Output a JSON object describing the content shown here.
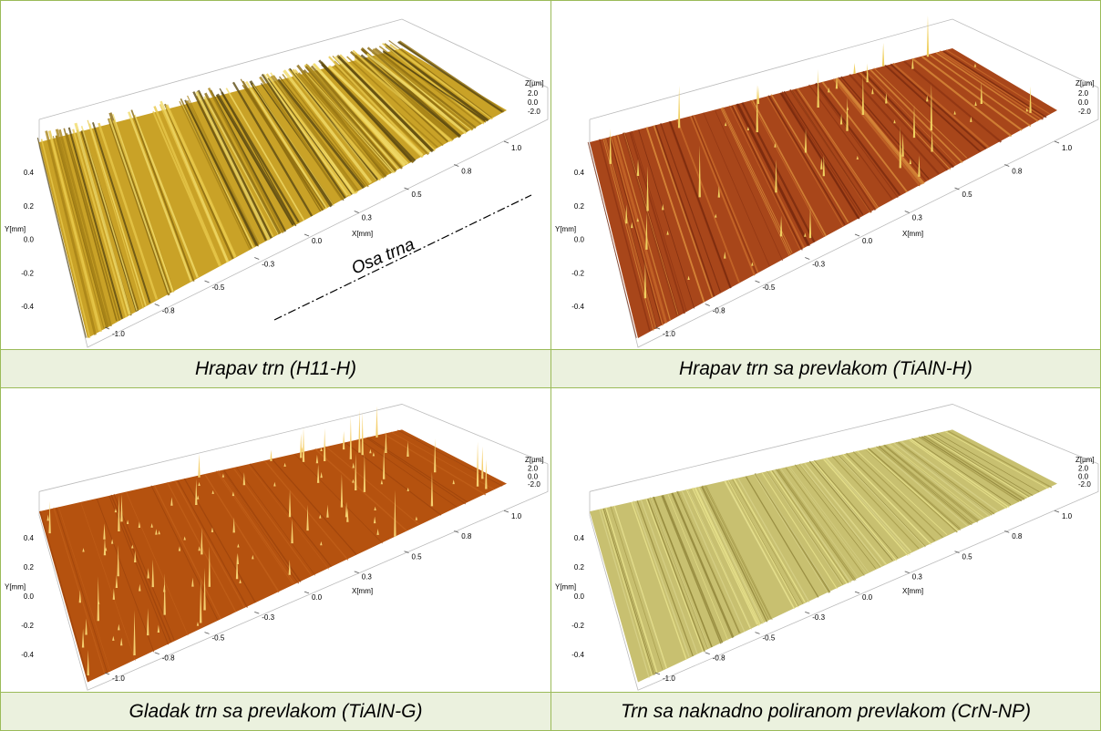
{
  "panels": [
    {
      "caption": "Hrapav trn (H11-H)",
      "x_axis_label": "X[mm]",
      "y_axis_label": "Y[mm]",
      "z_axis_label": "Z[µm]",
      "x_ticks": [
        "-1.0",
        "-0.8",
        "-0.5",
        "-0.3",
        "0.0",
        "0.3",
        "0.5",
        "0.8",
        "1.0"
      ],
      "y_ticks": [
        "-0.4",
        "-0.2",
        "0.0",
        "0.2",
        "0.4"
      ],
      "z_ticks": [
        "2.0",
        "0.0",
        "-2.0"
      ],
      "annotation": "Osa trna"
    },
    {
      "caption": "Hrapav trn sa prevlakom (TiAlN-H)",
      "x_axis_label": "X[mm]",
      "y_axis_label": "Y[mm]",
      "z_axis_label": "Z[µm]",
      "x_ticks": [
        "-1.0",
        "-0.8",
        "-0.5",
        "-0.3",
        "0.0",
        "0.3",
        "0.5",
        "0.8",
        "1.0"
      ],
      "y_ticks": [
        "-0.4",
        "-0.2",
        "0.0",
        "0.2",
        "0.4"
      ],
      "z_ticks": [
        "2.0",
        "0.0",
        "-2.0"
      ]
    },
    {
      "caption": "Gladak trn sa prevlakom (TiAlN-G)",
      "x_axis_label": "X[mm]",
      "y_axis_label": "Y[mm]",
      "z_axis_label": "Z[µm]",
      "x_ticks": [
        "-1.0",
        "-0.8",
        "-0.5",
        "-0.3",
        "0.0",
        "0.3",
        "0.5",
        "0.8",
        "1.0"
      ],
      "y_ticks": [
        "-0.4",
        "-0.2",
        "0.0",
        "0.2",
        "0.4"
      ],
      "z_ticks": [
        "2.0",
        "0.0",
        "-2.0"
      ]
    },
    {
      "caption": "Trn sa naknadno poliranom prevlakom (CrN-NP)",
      "x_axis_label": "X[mm]",
      "y_axis_label": "Y[mm]",
      "z_axis_label": "Z[µm]",
      "x_ticks": [
        "-1.0",
        "-0.8",
        "-0.5",
        "-0.3",
        "0.0",
        "0.3",
        "0.5",
        "0.8",
        "1.0"
      ],
      "y_ticks": [
        "-0.4",
        "-0.2",
        "0.0",
        "0.2",
        "0.4"
      ],
      "z_ticks": [
        "2.0",
        "0.0",
        "-2.0"
      ]
    }
  ]
}
